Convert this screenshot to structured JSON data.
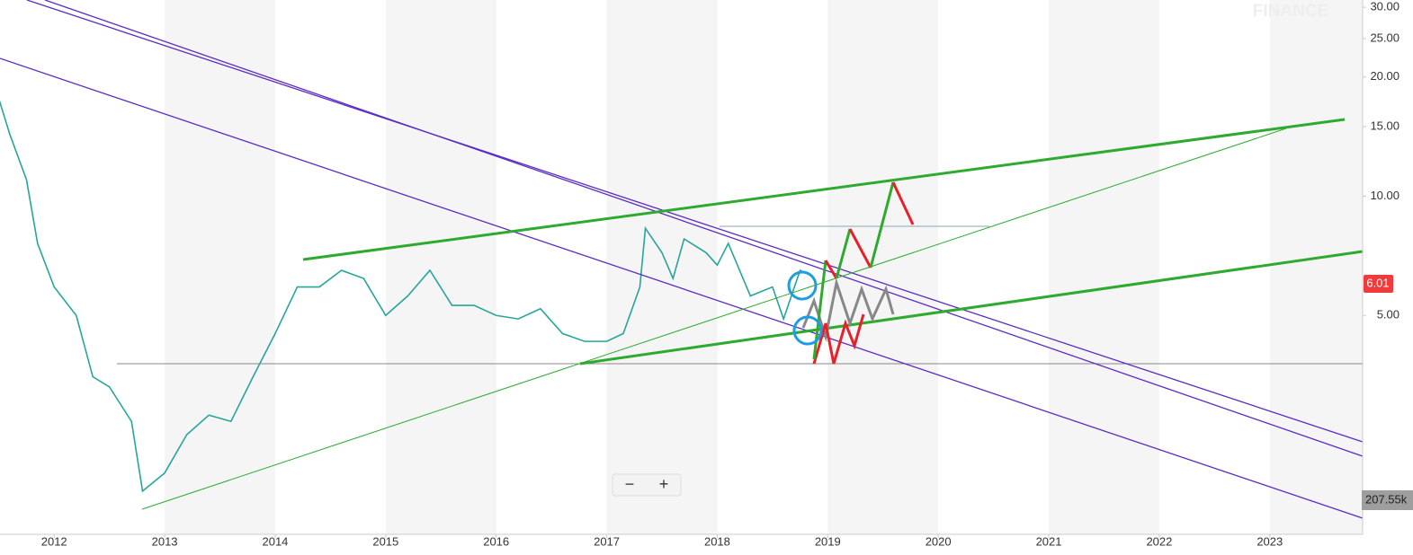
{
  "chart_data": {
    "type": "line",
    "watermark": "FINANCE",
    "log_scale": true,
    "color": "#26a69a",
    "x": [
      2011.5,
      2011.6,
      2011.75,
      2011.85,
      2012.0,
      2012.2,
      2012.35,
      2012.5,
      2012.7,
      2012.8,
      2013.0,
      2013.2,
      2013.4,
      2013.6,
      2013.8,
      2014.0,
      2014.2,
      2014.4,
      2014.6,
      2014.8,
      2015.0,
      2015.2,
      2015.4,
      2015.6,
      2015.8,
      2016.0,
      2016.2,
      2016.4,
      2016.6,
      2016.8,
      2017.0,
      2017.15,
      2017.3,
      2017.35,
      2017.5,
      2017.6,
      2017.7,
      2017.9,
      2018.0,
      2018.1,
      2018.3,
      2018.5,
      2018.6,
      2018.75,
      2018.85
    ],
    "values": [
      17.6,
      14.3,
      11.0,
      7.6,
      5.9,
      5.0,
      3.5,
      3.3,
      2.7,
      1.8,
      2.0,
      2.5,
      2.8,
      2.7,
      3.5,
      4.5,
      5.9,
      5.9,
      6.5,
      6.2,
      5.0,
      5.6,
      6.5,
      5.3,
      5.3,
      5.0,
      4.9,
      5.2,
      4.5,
      4.3,
      4.3,
      4.5,
      5.9,
      8.3,
      7.2,
      6.2,
      7.8,
      7.2,
      6.7,
      7.6,
      5.6,
      5.9,
      4.9,
      6.5,
      6.3
    ],
    "xlim": [
      2011.51,
      2023.84
    ],
    "xticks": [
      2012,
      2013,
      2014,
      2015,
      2016,
      2017,
      2018,
      2019,
      2020,
      2021,
      2022,
      2023
    ],
    "ylim": [
      1.4,
      31.3
    ],
    "yticks": [
      {
        "value": 30,
        "label": "30.00"
      },
      {
        "value": 25,
        "label": "25.00"
      },
      {
        "value": 20,
        "label": "20.00"
      },
      {
        "value": 15,
        "label": "15.00"
      },
      {
        "value": 10,
        "label": "10.00"
      },
      {
        "value": 5,
        "label": "5.00"
      }
    ],
    "last_price": 6.01,
    "last_volume": "207.55k",
    "zoom_out": "−",
    "zoom_in": "+"
  }
}
